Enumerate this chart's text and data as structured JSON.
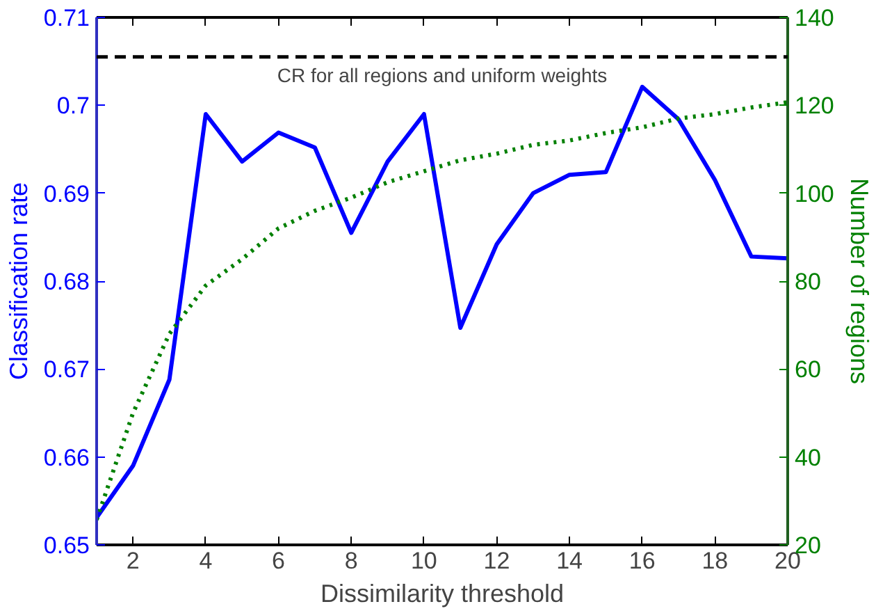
{
  "chart_data": {
    "type": "line",
    "xlabel": "Dissimilarity threshold",
    "ylabel": "Classification rate",
    "y2label": "Number of regions",
    "x": [
      1,
      2,
      3,
      4,
      5,
      6,
      7,
      8,
      9,
      10,
      11,
      12,
      13,
      14,
      15,
      16,
      17,
      18,
      19,
      20
    ],
    "series": [
      {
        "color": "#0000ff",
        "line_style": "solid",
        "values": [
          0.6531,
          0.659,
          0.6688,
          0.699,
          0.6936,
          0.6969,
          0.6952,
          0.6855,
          0.6936,
          0.699,
          0.6747,
          0.6842,
          0.69,
          0.6921,
          0.6924,
          0.7021,
          0.6984,
          0.6915,
          0.6828,
          0.6826
        ]
      },
      {
        "color": "#008000",
        "line_style": "dotted",
        "axis": "y2",
        "values": [
          25.7,
          50,
          68,
          79,
          85,
          92,
          96,
          99,
          102.5,
          105,
          107.5,
          109,
          111,
          112,
          113.7,
          115,
          117,
          118,
          119.5,
          120.7
        ]
      }
    ],
    "xlim": [
      1,
      20
    ],
    "xticks": [
      2,
      4,
      6,
      8,
      10,
      12,
      14,
      16,
      18,
      20
    ],
    "ylim": [
      0.65,
      0.71
    ],
    "yticks": [
      0.65,
      0.66,
      0.67,
      0.68,
      0.69,
      0.7,
      0.71
    ],
    "y2lim": [
      20,
      140
    ],
    "y2ticks": [
      20,
      40,
      60,
      80,
      100,
      120,
      140
    ],
    "ref_lines": [
      {
        "axis": "y",
        "value": 0.7055,
        "label": "CR for all regions and uniform weights",
        "color": "#000000",
        "line_style": "dashed"
      }
    ],
    "grid": false,
    "marker": "none"
  }
}
